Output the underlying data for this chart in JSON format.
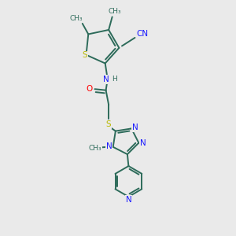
{
  "background_color": "#eaeaea",
  "bond_color": "#2d6b5a",
  "S_color": "#b8b800",
  "N_color": "#1a1aff",
  "O_color": "#ff0000",
  "text_color": "#2d6b5a",
  "figsize": [
    3.0,
    3.0
  ],
  "dpi": 100,
  "xlim": [
    0,
    10
  ],
  "ylim": [
    0,
    10
  ]
}
